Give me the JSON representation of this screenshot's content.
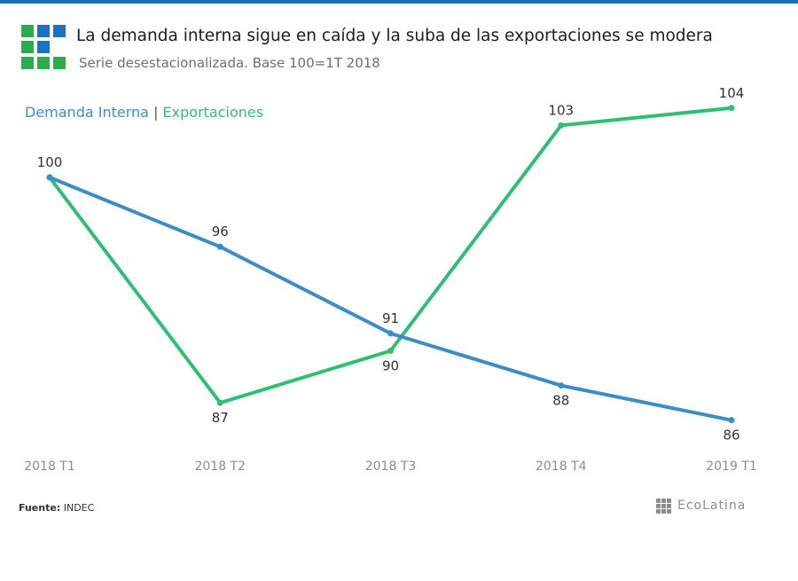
{
  "colors": {
    "top_bar": "#1f6fb5",
    "demanda": "#3a8dc8",
    "exportaciones": "#2fbf71",
    "axis_text": "#8c8c8c",
    "label_text": "#333333",
    "logo_green": "#2eaa4f",
    "logo_blue": "#1a73c1"
  },
  "header": {
    "title": "La demanda interna sigue en caída y la suba de las exportaciones se modera",
    "subtitle": "Serie desestacionalizada. Base 100=1T 2018"
  },
  "legend": {
    "demanda_label": "Demanda Interna",
    "separator": "|",
    "exportaciones_label": "Exportaciones"
  },
  "footer": {
    "source_label": "Fuente:",
    "source_value": "INDEC",
    "brand": "EcoLatina"
  },
  "chart_data": {
    "type": "line",
    "title": "La demanda interna sigue en caída y la suba de las exportaciones se modera",
    "subtitle": "Serie desestacionalizada. Base 100=1T 2018",
    "categories": [
      "2018 T1",
      "2018 T2",
      "2018 T3",
      "2018 T4",
      "2019 T1"
    ],
    "series": [
      {
        "name": "Demanda Interna",
        "values": [
          100,
          96,
          91,
          88,
          86
        ],
        "color": "#3a8dc8",
        "label_position": [
          "above",
          "above",
          "above",
          "below",
          "below"
        ]
      },
      {
        "name": "Exportaciones",
        "values": [
          100,
          87,
          90,
          103,
          104
        ],
        "color": "#2fbf71",
        "label_position": [
          "none",
          "below",
          "below",
          "above",
          "above"
        ]
      }
    ],
    "ylim": [
      84.5,
      104.5
    ],
    "grid": false,
    "legend_position": "top-left",
    "xlabel": "",
    "ylabel": ""
  }
}
